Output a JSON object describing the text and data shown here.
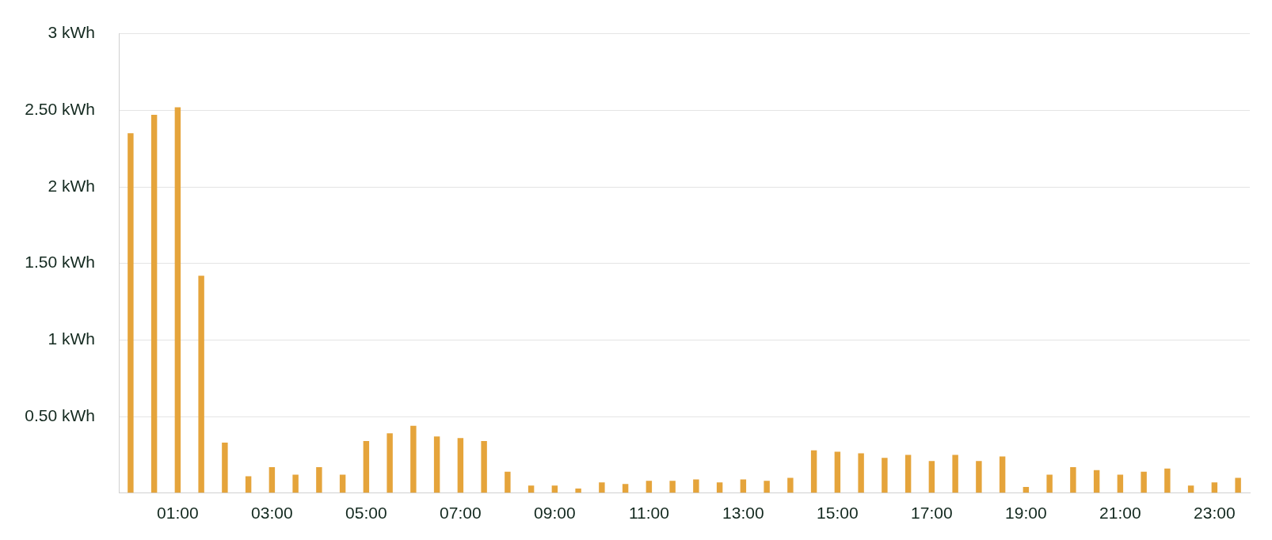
{
  "chart_data": {
    "type": "bar",
    "categories": [
      null,
      null,
      "01:00",
      null,
      null,
      null,
      "03:00",
      null,
      null,
      null,
      "05:00",
      null,
      null,
      null,
      "07:00",
      null,
      null,
      null,
      "09:00",
      null,
      null,
      null,
      "11:00",
      null,
      null,
      null,
      "13:00",
      null,
      null,
      null,
      "15:00",
      null,
      null,
      null,
      "17:00",
      null,
      null,
      null,
      "19:00",
      null,
      null,
      null,
      "21:00",
      null,
      null,
      null,
      "23:00",
      null
    ],
    "values": [
      2.35,
      2.47,
      2.52,
      1.42,
      0.33,
      0.11,
      0.17,
      0.12,
      0.17,
      0.12,
      0.34,
      0.39,
      0.44,
      0.37,
      0.36,
      0.34,
      0.14,
      0.05,
      0.05,
      0.03,
      0.07,
      0.06,
      0.08,
      0.08,
      0.09,
      0.07,
      0.09,
      0.08,
      0.1,
      0.28,
      0.27,
      0.26,
      0.23,
      0.25,
      0.21,
      0.25,
      0.21,
      0.24,
      0.04,
      0.12,
      0.17,
      0.15,
      0.12,
      0.14,
      0.16,
      0.05,
      0.07,
      0.1
    ],
    "color": "#e5a43b",
    "ylim": [
      0,
      3
    ],
    "yticks": [
      {
        "value": 0,
        "label": null
      },
      {
        "value": 0.5,
        "label": "0.50 kWh"
      },
      {
        "value": 1,
        "label": "1 kWh"
      },
      {
        "value": 1.5,
        "label": "1.50 kWh"
      },
      {
        "value": 2,
        "label": "2 kWh"
      },
      {
        "value": 2.5,
        "label": "2.50 kWh"
      },
      {
        "value": 3,
        "label": "3 kWh"
      }
    ],
    "grid": "y",
    "legend": false
  }
}
